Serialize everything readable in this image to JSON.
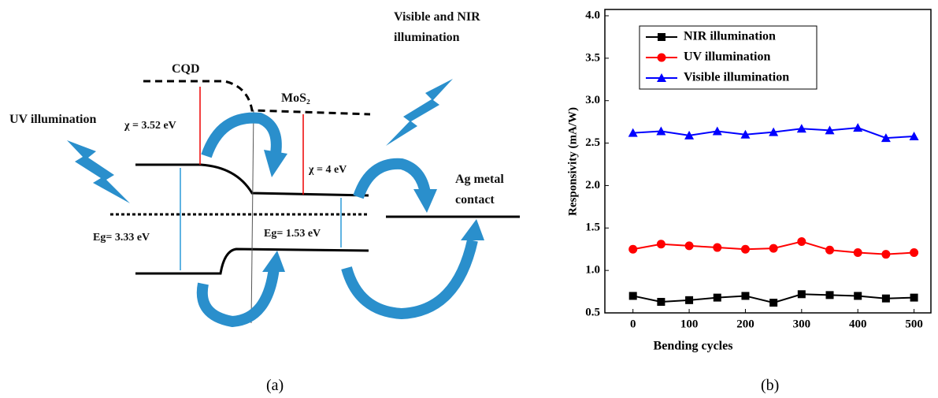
{
  "diagram": {
    "cqd": "CQD",
    "mos2": "MoS₂",
    "uv": "UV illumination",
    "vis": "Visible and NIR illumination",
    "chi1": "χ = 3.52 eV",
    "chi2": "χ = 4 eV",
    "eg1": "Eg= 3.33 eV",
    "eg2": "Eg= 1.53 eV",
    "ag": "Ag metal contact"
  },
  "panel_labels": [
    "(a)",
    "(b)"
  ],
  "chart_data": {
    "type": "line",
    "x_label": "Bending cycles",
    "y_label": "Responsivity (mA/W)",
    "x": [
      0,
      50,
      100,
      150,
      200,
      250,
      300,
      350,
      400,
      450,
      500
    ],
    "series": [
      {
        "name": "NIR illumination",
        "color": "#000000",
        "marker": "square",
        "values": [
          0.7,
          0.63,
          0.65,
          0.68,
          0.7,
          0.62,
          0.72,
          0.71,
          0.7,
          0.67,
          0.68
        ]
      },
      {
        "name": "UV illumination",
        "color": "#ff0000",
        "marker": "circle",
        "values": [
          1.25,
          1.31,
          1.29,
          1.27,
          1.25,
          1.26,
          1.34,
          1.24,
          1.21,
          1.19,
          1.21
        ]
      },
      {
        "name": "Visible illumination",
        "color": "#0000ff",
        "marker": "triangle",
        "values": [
          2.62,
          2.64,
          2.59,
          2.64,
          2.6,
          2.63,
          2.67,
          2.65,
          2.68,
          2.56,
          2.58
        ]
      }
    ],
    "xlim": [
      -50,
      530
    ],
    "xticks": [
      0,
      100,
      200,
      300,
      400,
      500
    ],
    "ylim": [
      0.5,
      4.0
    ],
    "yticks": [
      0.5,
      {
        "value": 1,
        "label": "1.0"
      },
      1.5,
      {
        "value": 2,
        "label": "2.0"
      },
      2.5,
      {
        "value": 3,
        "label": "3.0"
      },
      3.5,
      {
        "value": 4,
        "label": "4.0"
      }
    ],
    "legend": "upper left"
  }
}
